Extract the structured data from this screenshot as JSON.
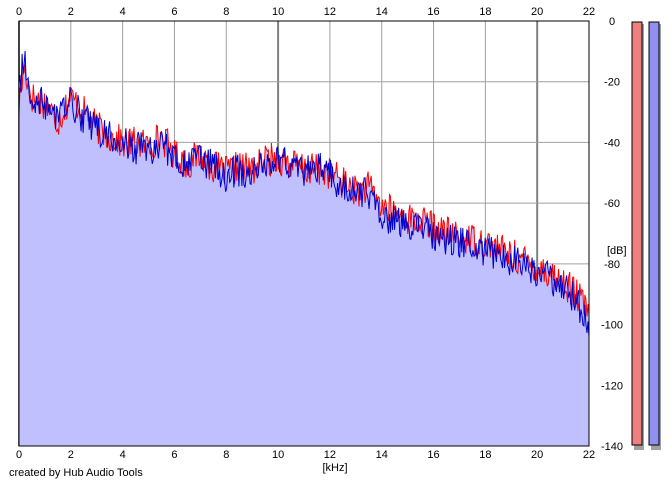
{
  "credit": "created by Hub Audio Tools",
  "colors": {
    "background": "#ffffff",
    "grid": "#a0a0a0",
    "grid_major": "#808080",
    "fill": "#c0c0ff",
    "left_channel": "#ff0000",
    "right_channel": "#0000cc",
    "meter_left": "#f08080",
    "meter_right": "#9090f0",
    "axis": "#000000"
  },
  "chart_data": {
    "type": "line",
    "title": "",
    "xlabel": "[kHz]",
    "ylabel": "[dB]",
    "xlim": [
      0,
      22
    ],
    "ylim": [
      -140,
      0
    ],
    "x_ticks": [
      "0",
      "2",
      "4",
      "6",
      "8",
      "10",
      "12",
      "14",
      "16",
      "18",
      "20",
      "22"
    ],
    "y_ticks": [
      "0",
      "-20",
      "-40",
      "-60",
      "-80",
      "-100",
      "-120",
      "-140"
    ],
    "grid": true,
    "fill_under": true,
    "x": [
      0.0,
      0.2,
      0.5,
      1.0,
      1.5,
      2.0,
      2.5,
      3.0,
      3.5,
      4.0,
      4.5,
      5.0,
      5.5,
      6.0,
      6.5,
      7.0,
      7.5,
      8.0,
      8.5,
      9.0,
      9.5,
      10.0,
      10.5,
      11.0,
      11.5,
      12.0,
      12.5,
      13.0,
      13.5,
      14.0,
      14.5,
      15.0,
      15.5,
      16.0,
      16.5,
      17.0,
      17.5,
      18.0,
      18.5,
      19.0,
      19.5,
      20.0,
      20.5,
      21.0,
      21.5,
      22.0
    ],
    "series": [
      {
        "channel": "left",
        "color": "#ff0000",
        "values": [
          -28,
          -15,
          -25,
          -27,
          -33,
          -25,
          -30,
          -35,
          -38,
          -40,
          -40,
          -41,
          -38,
          -44,
          -47,
          -44,
          -48,
          -50,
          -48,
          -49,
          -46,
          -45,
          -47,
          -49,
          -49,
          -50,
          -53,
          -56,
          -55,
          -61,
          -63,
          -65,
          -66,
          -68,
          -70,
          -71,
          -72,
          -73,
          -75,
          -77,
          -79,
          -81,
          -83,
          -86,
          -90,
          -96
        ]
      },
      {
        "channel": "right",
        "color": "#0000cc",
        "values": [
          -22,
          -12,
          -25,
          -28,
          -31,
          -27,
          -32,
          -36,
          -38,
          -39,
          -42,
          -42,
          -41,
          -45,
          -47,
          -46,
          -48,
          -51,
          -49,
          -50,
          -47,
          -45,
          -48,
          -50,
          -48,
          -51,
          -54,
          -56,
          -57,
          -63,
          -66,
          -66,
          -68,
          -70,
          -72,
          -73,
          -74,
          -76,
          -77,
          -79,
          -81,
          -83,
          -85,
          -88,
          -92,
          -100
        ]
      }
    ]
  }
}
